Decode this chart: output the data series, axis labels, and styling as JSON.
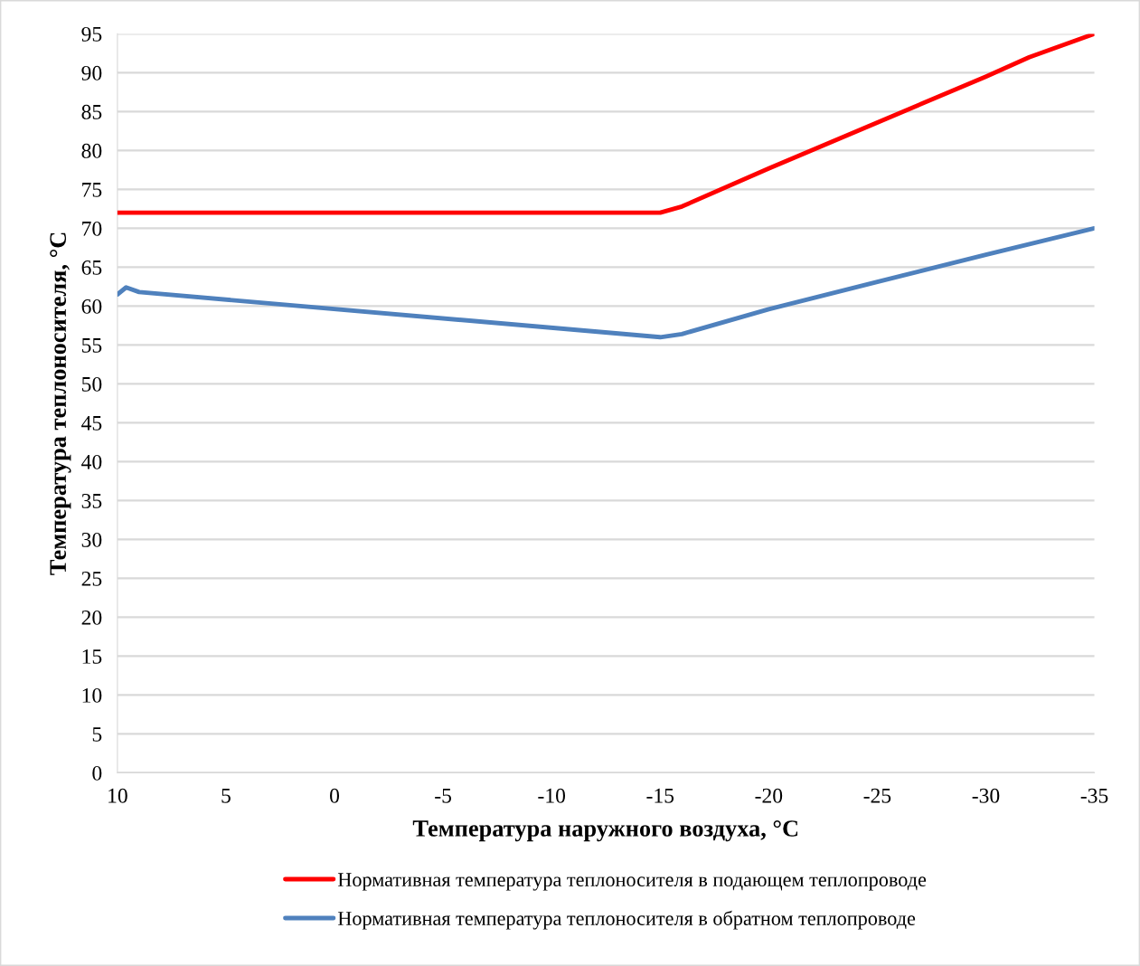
{
  "chart_data": {
    "type": "line",
    "xlabel": "Температура наружного воздуха, °С",
    "ylabel": "Температура теплоносителя, °С",
    "xlim": [
      10,
      -35
    ],
    "xticks": [
      10,
      5,
      0,
      -5,
      -10,
      -15,
      -20,
      -25,
      -30,
      -35
    ],
    "ylim": [
      0,
      95
    ],
    "yticks": [
      0,
      5,
      10,
      15,
      20,
      25,
      30,
      35,
      40,
      45,
      50,
      55,
      60,
      65,
      70,
      75,
      80,
      85,
      90,
      95
    ],
    "grid": "y",
    "legend": "bottom",
    "marker": "none",
    "line_style": "solid",
    "series": [
      {
        "name": "Нормативная температура теплоносителя в подающем теплопроводе",
        "color": "#ff0000",
        "x": [
          10,
          -15,
          -16,
          -20,
          -25,
          -30,
          -32,
          -35
        ],
        "values": [
          72,
          72,
          72.8,
          77.7,
          83.6,
          89.5,
          92,
          95
        ]
      },
      {
        "name": "Нормативная температура теплоносителя в обратном теплопроводе",
        "color": "#4f81bd",
        "x": [
          10,
          9.6,
          9,
          -15,
          -16,
          -20,
          -25,
          -30,
          -35
        ],
        "values": [
          61.5,
          62.4,
          61.8,
          56,
          56.4,
          59.6,
          63.1,
          66.6,
          70
        ]
      }
    ]
  }
}
